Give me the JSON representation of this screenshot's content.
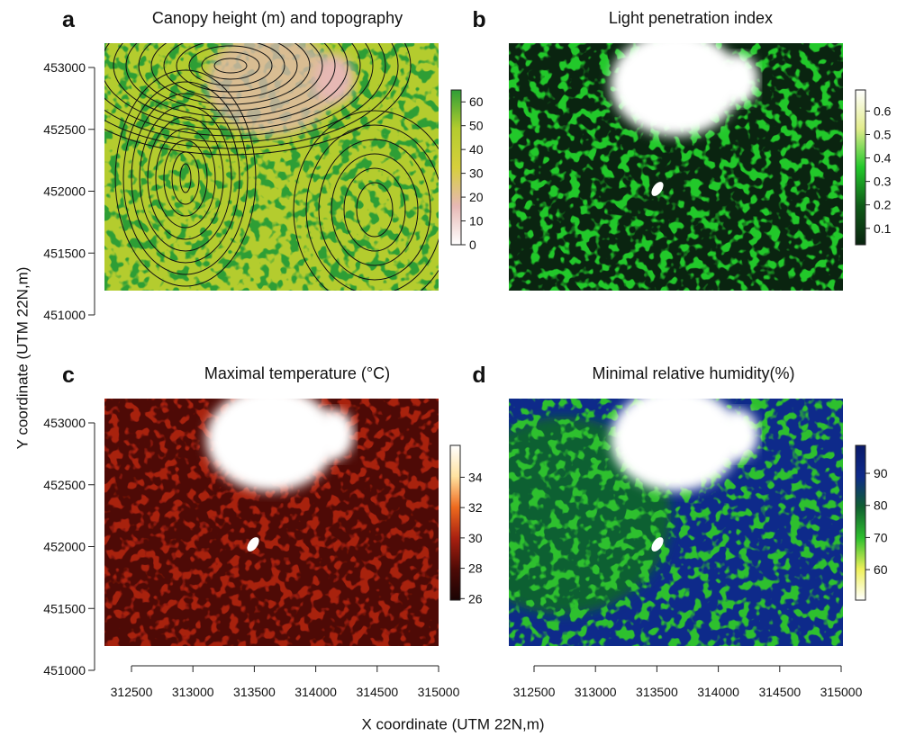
{
  "y_label": "Y coordinate (UTM 22N,m)",
  "x_label": "X coordinate (UTM 22N,m)",
  "chart_data": [
    {
      "type": "raster",
      "panel": "a",
      "title": "Canopy height (m) and topography",
      "ylim": [
        451000,
        453000
      ],
      "yticks": [
        451000,
        451500,
        452000,
        452500,
        453000
      ],
      "colorbar_lim": [
        0,
        65
      ],
      "colorbar_ticks": [
        0,
        10,
        20,
        30,
        40,
        50,
        60
      ],
      "colormap": [
        "#ffffff",
        "#e6b8b4",
        "#d6cf3c",
        "#b4cc2e",
        "#2e9e36"
      ],
      "contours": true
    },
    {
      "type": "raster",
      "panel": "b",
      "title": "Light penetration index",
      "colorbar_lim": [
        0.03,
        0.69
      ],
      "colorbar_ticks": [
        0.1,
        0.2,
        0.3,
        0.4,
        0.5,
        0.6
      ],
      "colormap": [
        "#0a2410",
        "#0f5a18",
        "#22c82a",
        "#e2ec8c",
        "#ffffff"
      ]
    },
    {
      "type": "raster",
      "panel": "c",
      "title": "Maximal temperature (°C)",
      "ylim": [
        451000,
        453000
      ],
      "yticks": [
        451000,
        451500,
        452000,
        452500,
        453000
      ],
      "xlim": [
        312500,
        315000
      ],
      "xticks": [
        312500,
        313000,
        313500,
        314000,
        314500,
        315000
      ],
      "colorbar_lim": [
        25.9,
        36.1
      ],
      "colorbar_ticks": [
        26,
        28,
        30,
        32,
        34
      ],
      "colormap": [
        "#1a0404",
        "#4e0a06",
        "#a82010",
        "#ee6a1e",
        "#ffe2a0",
        "#ffffff"
      ]
    },
    {
      "type": "raster",
      "panel": "d",
      "title": "Minimal relative humidity(%)",
      "xlim": [
        312500,
        315000
      ],
      "xticks": [
        312500,
        313000,
        313500,
        314000,
        314500,
        315000
      ],
      "colorbar_lim": [
        50.5,
        98.7
      ],
      "colorbar_ticks": [
        60,
        70,
        80,
        90
      ],
      "colormap": [
        "#ffffff",
        "#eef05a",
        "#2ec02e",
        "#106030",
        "#0e2a8a",
        "#0a1a6a"
      ]
    }
  ]
}
